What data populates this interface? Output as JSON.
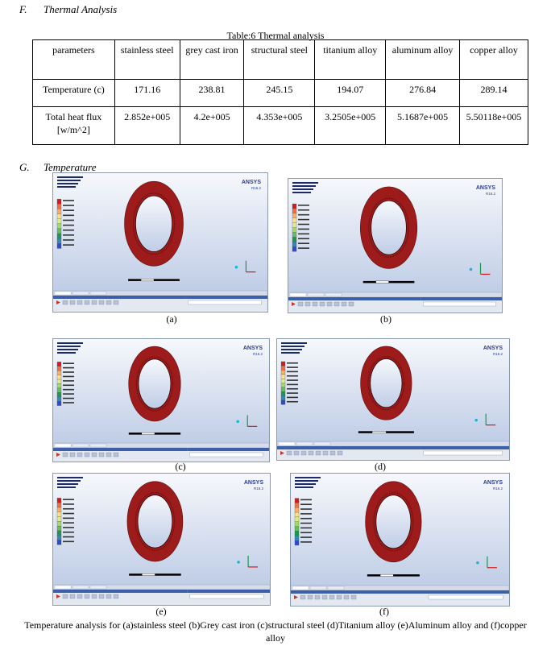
{
  "section_f": {
    "number": "F.",
    "title": "Thermal Analysis"
  },
  "table": {
    "caption": "Table:6 Thermal analysis",
    "headers": [
      "parameters",
      "stainless steel",
      "grey cast iron",
      "structural steel",
      "titanium alloy",
      "aluminum alloy",
      "copper alloy"
    ],
    "rows": [
      [
        "Temperature (c)",
        "171.16",
        "238.81",
        "245.15",
        "194.07",
        "276.84",
        "289.14"
      ],
      [
        "Total heat flux [w/m^2]",
        "2.852e+005",
        "4.2e+005",
        "4.353e+005",
        "3.2505e+005",
        "5.1687e+005",
        "5.50118e+005"
      ]
    ]
  },
  "section_g": {
    "number": "G.",
    "title": "Temperature"
  },
  "screenshots": {
    "brand": "ANSYS",
    "version": "R16.2",
    "items": [
      {
        "label": "(a)"
      },
      {
        "label": "(b)"
      },
      {
        "label": "(c)"
      },
      {
        "label": "(d)"
      },
      {
        "label": "(e)"
      },
      {
        "label": "(f)"
      }
    ],
    "legend_colors": [
      "#d7191c",
      "#f46d43",
      "#fdae61",
      "#fee08b",
      "#d9ef8b",
      "#a6d96a",
      "#66bd63",
      "#1a9850",
      "#3288bd",
      "#2b4bd6"
    ],
    "ring_color": "#9e1b1b",
    "background_top": "#f6f8fc",
    "background_bottom": "#bfcde6"
  },
  "figure_caption": "Temperature analysis for (a)stainless steel  (b)Grey cast iron (c)structural steel (d)Titanium alloy (e)Aluminum alloy and (f)copper alloy"
}
